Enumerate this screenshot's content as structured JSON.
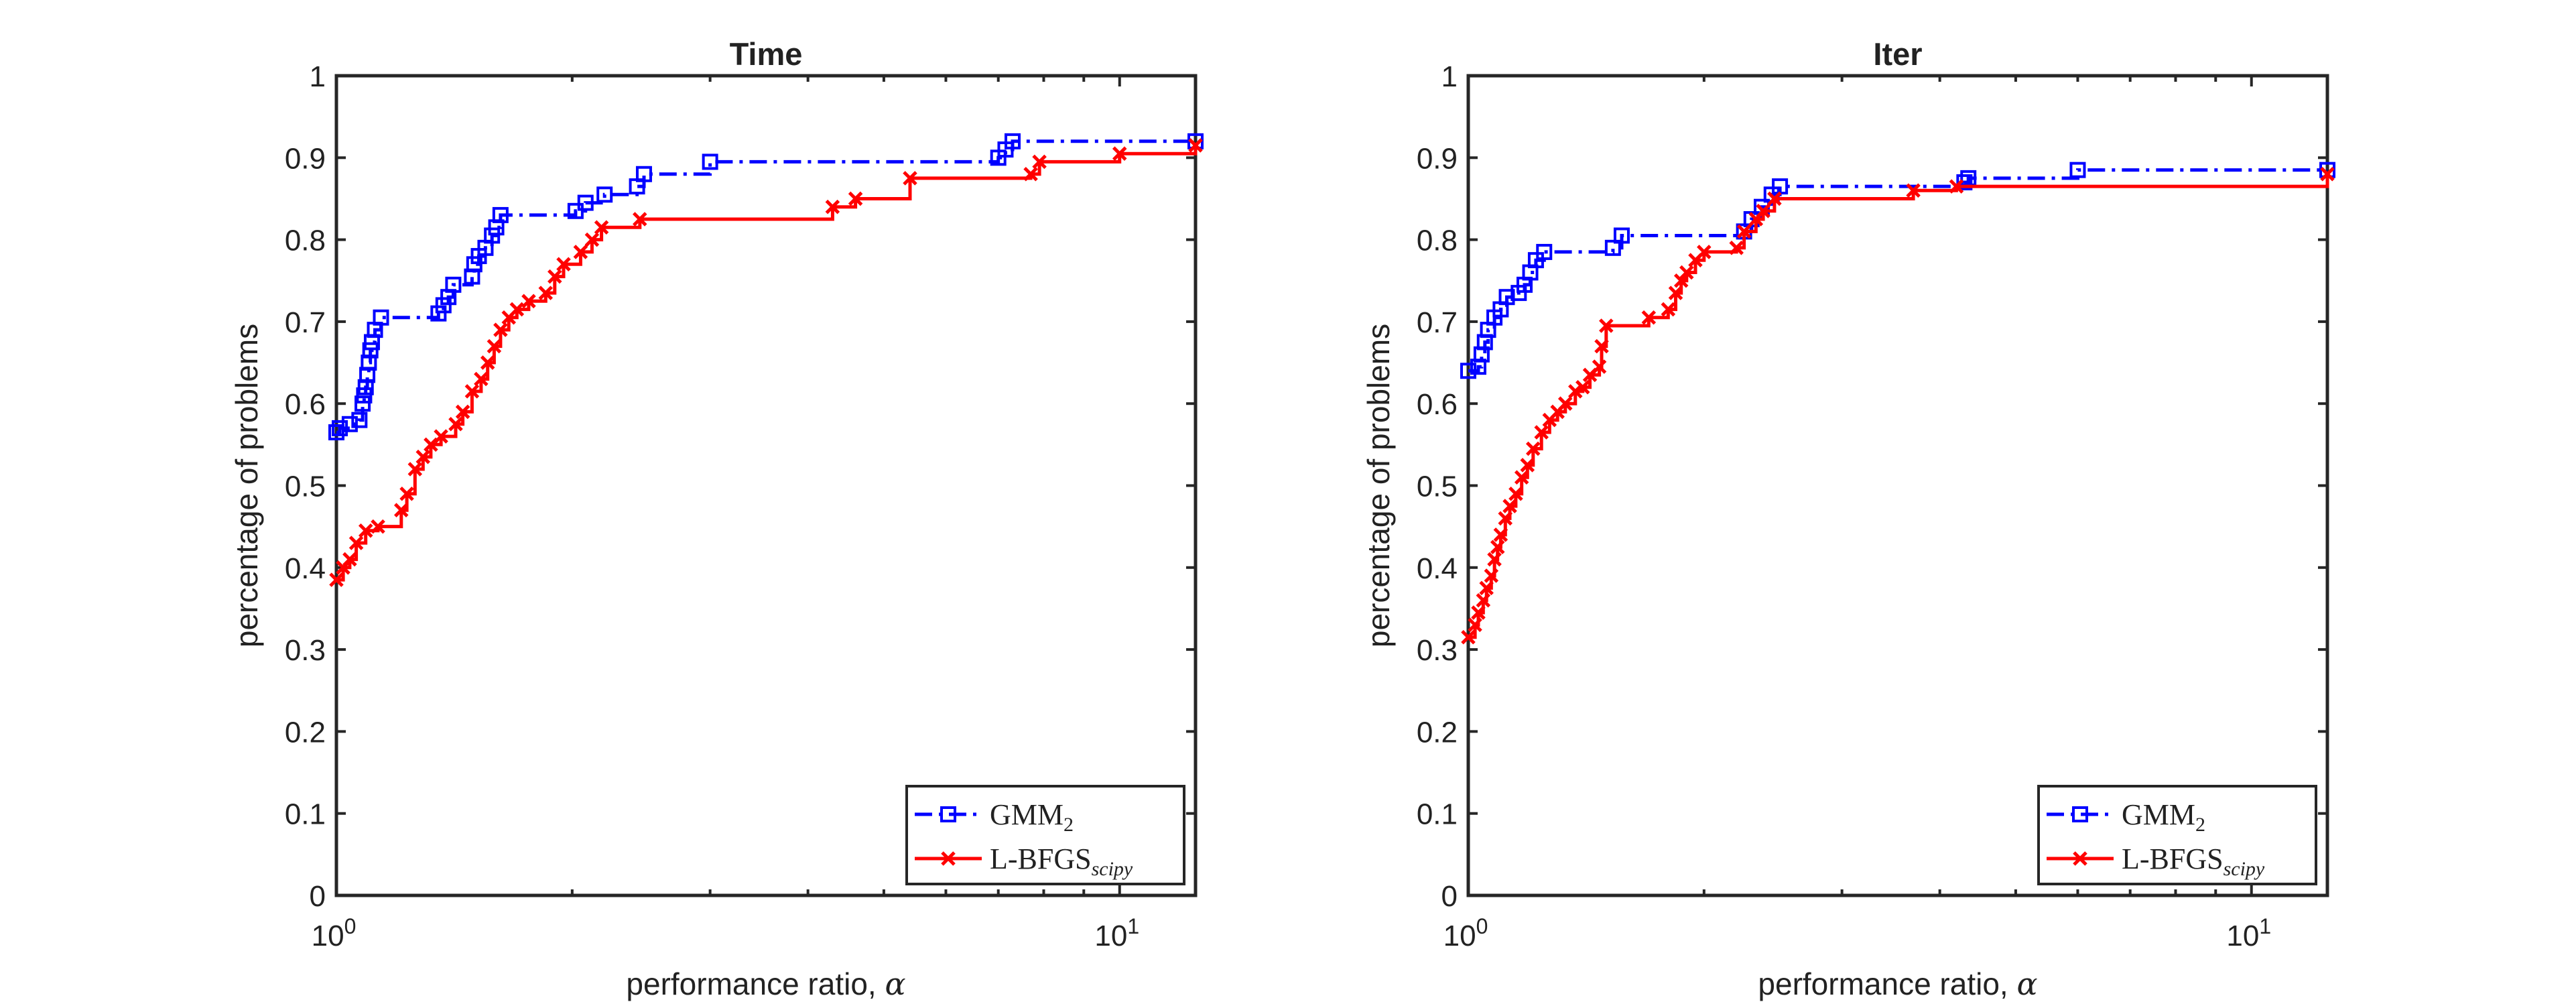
{
  "colors": {
    "gmm": "#0000ff",
    "lbfgs": "#ff0000",
    "axis": "#262626"
  },
  "x_axis_labels": {
    "base": "10",
    "exp0": "0",
    "exp1": "1"
  },
  "legend": {
    "gmm_base": "GMM",
    "gmm_sub": "2",
    "lbfgs_base": "L-BFGS",
    "lbfgs_sub": "scipy"
  },
  "chart_data": [
    {
      "type": "line",
      "title": "Time",
      "xlabel": "performance ratio, α",
      "ylabel": "percentage of problems",
      "xscale": "log",
      "xlim": [
        1,
        12.5
      ],
      "ylim": [
        0,
        1
      ],
      "xticks": [
        1,
        10
      ],
      "yticks": [
        0,
        0.1,
        0.2,
        0.3,
        0.4,
        0.5,
        0.6,
        0.7,
        0.8,
        0.9,
        1
      ],
      "ytick_labels": [
        "0",
        "0.1",
        "0.2",
        "0.3",
        "0.4",
        "0.5",
        "0.6",
        "0.7",
        "0.8",
        "0.9",
        "1"
      ],
      "grid": false,
      "legend_position": "bottom-right",
      "series": [
        {
          "name": "GMM2",
          "style": "dash-dot with square markers",
          "points": [
            [
              1.0,
              0.565
            ],
            [
              1.01,
              0.57
            ],
            [
              1.04,
              0.575
            ],
            [
              1.07,
              0.58
            ],
            [
              1.08,
              0.6
            ],
            [
              1.085,
              0.61
            ],
            [
              1.09,
              0.62
            ],
            [
              1.095,
              0.635
            ],
            [
              1.1,
              0.65
            ],
            [
              1.105,
              0.665
            ],
            [
              1.11,
              0.675
            ],
            [
              1.12,
              0.69
            ],
            [
              1.14,
              0.705
            ],
            [
              1.35,
              0.71
            ],
            [
              1.37,
              0.72
            ],
            [
              1.39,
              0.73
            ],
            [
              1.41,
              0.745
            ],
            [
              1.49,
              0.755
            ],
            [
              1.5,
              0.77
            ],
            [
              1.52,
              0.78
            ],
            [
              1.55,
              0.79
            ],
            [
              1.58,
              0.805
            ],
            [
              1.6,
              0.815
            ],
            [
              1.62,
              0.83
            ],
            [
              2.02,
              0.835
            ],
            [
              2.08,
              0.845
            ],
            [
              2.2,
              0.855
            ],
            [
              2.42,
              0.865
            ],
            [
              2.47,
              0.88
            ],
            [
              3.0,
              0.895
            ],
            [
              7.0,
              0.9
            ],
            [
              7.15,
              0.91
            ],
            [
              7.3,
              0.92
            ],
            [
              12.5,
              0.92
            ]
          ]
        },
        {
          "name": "L-BFGSscipy",
          "style": "solid with x markers",
          "points": [
            [
              1.0,
              0.385
            ],
            [
              1.02,
              0.4
            ],
            [
              1.04,
              0.41
            ],
            [
              1.06,
              0.43
            ],
            [
              1.09,
              0.445
            ],
            [
              1.13,
              0.45
            ],
            [
              1.21,
              0.47
            ],
            [
              1.23,
              0.49
            ],
            [
              1.26,
              0.52
            ],
            [
              1.29,
              0.535
            ],
            [
              1.32,
              0.55
            ],
            [
              1.36,
              0.56
            ],
            [
              1.42,
              0.575
            ],
            [
              1.45,
              0.59
            ],
            [
              1.49,
              0.615
            ],
            [
              1.53,
              0.63
            ],
            [
              1.56,
              0.65
            ],
            [
              1.59,
              0.67
            ],
            [
              1.62,
              0.69
            ],
            [
              1.66,
              0.705
            ],
            [
              1.7,
              0.715
            ],
            [
              1.76,
              0.725
            ],
            [
              1.85,
              0.735
            ],
            [
              1.9,
              0.755
            ],
            [
              1.95,
              0.77
            ],
            [
              2.05,
              0.785
            ],
            [
              2.12,
              0.8
            ],
            [
              2.18,
              0.815
            ],
            [
              2.44,
              0.825
            ],
            [
              4.3,
              0.84
            ],
            [
              4.6,
              0.85
            ],
            [
              5.4,
              0.875
            ],
            [
              7.7,
              0.88
            ],
            [
              7.9,
              0.895
            ],
            [
              10.0,
              0.905
            ],
            [
              12.5,
              0.915
            ]
          ]
        }
      ]
    },
    {
      "type": "line",
      "title": "Iter",
      "xlabel": "performance ratio, α",
      "ylabel": "percentage of problems",
      "xscale": "log",
      "xlim": [
        1,
        12.5
      ],
      "ylim": [
        0,
        1
      ],
      "xticks": [
        1,
        10
      ],
      "yticks": [
        0,
        0.1,
        0.2,
        0.3,
        0.4,
        0.5,
        0.6,
        0.7,
        0.8,
        0.9,
        1
      ],
      "ytick_labels": [
        "0",
        "0.1",
        "0.2",
        "0.3",
        "0.4",
        "0.5",
        "0.6",
        "0.7",
        "0.8",
        "0.9",
        "1"
      ],
      "grid": false,
      "legend_position": "bottom-right",
      "series": [
        {
          "name": "GMM2",
          "style": "dash-dot with square markers",
          "points": [
            [
              1.0,
              0.64
            ],
            [
              1.03,
              0.645
            ],
            [
              1.04,
              0.66
            ],
            [
              1.05,
              0.675
            ],
            [
              1.06,
              0.69
            ],
            [
              1.08,
              0.705
            ],
            [
              1.1,
              0.715
            ],
            [
              1.12,
              0.73
            ],
            [
              1.16,
              0.735
            ],
            [
              1.18,
              0.745
            ],
            [
              1.2,
              0.76
            ],
            [
              1.22,
              0.775
            ],
            [
              1.25,
              0.785
            ],
            [
              1.53,
              0.79
            ],
            [
              1.57,
              0.805
            ],
            [
              2.25,
              0.81
            ],
            [
              2.3,
              0.825
            ],
            [
              2.37,
              0.84
            ],
            [
              2.44,
              0.855
            ],
            [
              2.5,
              0.865
            ],
            [
              4.3,
              0.87
            ],
            [
              4.35,
              0.875
            ],
            [
              6.0,
              0.885
            ],
            [
              12.5,
              0.885
            ]
          ]
        },
        {
          "name": "L-BFGSscipy",
          "style": "solid with x markers",
          "points": [
            [
              1.0,
              0.315
            ],
            [
              1.02,
              0.33
            ],
            [
              1.03,
              0.345
            ],
            [
              1.045,
              0.36
            ],
            [
              1.055,
              0.375
            ],
            [
              1.07,
              0.39
            ],
            [
              1.08,
              0.41
            ],
            [
              1.09,
              0.425
            ],
            [
              1.1,
              0.44
            ],
            [
              1.115,
              0.46
            ],
            [
              1.13,
              0.475
            ],
            [
              1.15,
              0.49
            ],
            [
              1.17,
              0.51
            ],
            [
              1.19,
              0.525
            ],
            [
              1.21,
              0.545
            ],
            [
              1.24,
              0.565
            ],
            [
              1.27,
              0.58
            ],
            [
              1.3,
              0.59
            ],
            [
              1.33,
              0.6
            ],
            [
              1.37,
              0.615
            ],
            [
              1.4,
              0.62
            ],
            [
              1.43,
              0.635
            ],
            [
              1.47,
              0.645
            ],
            [
              1.48,
              0.67
            ],
            [
              1.5,
              0.695
            ],
            [
              1.7,
              0.705
            ],
            [
              1.8,
              0.715
            ],
            [
              1.84,
              0.735
            ],
            [
              1.87,
              0.75
            ],
            [
              1.9,
              0.76
            ],
            [
              1.95,
              0.775
            ],
            [
              2.0,
              0.785
            ],
            [
              2.2,
              0.79
            ],
            [
              2.25,
              0.81
            ],
            [
              2.33,
              0.825
            ],
            [
              2.38,
              0.835
            ],
            [
              2.46,
              0.85
            ],
            [
              3.7,
              0.86
            ],
            [
              4.2,
              0.865
            ],
            [
              12.5,
              0.88
            ]
          ]
        }
      ]
    }
  ]
}
